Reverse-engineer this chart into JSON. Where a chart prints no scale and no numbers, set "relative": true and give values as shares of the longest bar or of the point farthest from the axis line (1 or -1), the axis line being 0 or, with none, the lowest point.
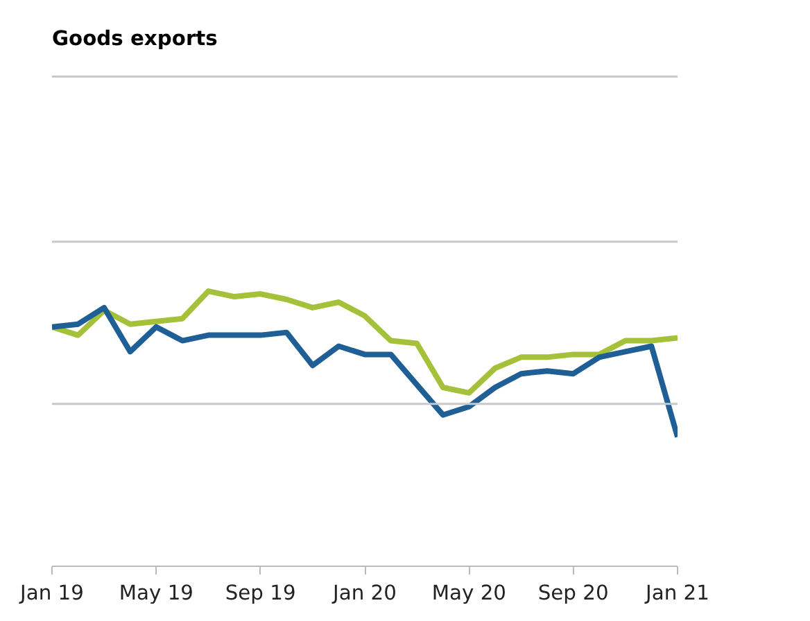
{
  "chart_data": {
    "type": "line",
    "title": "Goods exports",
    "relative": true,
    "categories": [
      "Jan 19",
      null,
      null,
      null,
      "May 19",
      null,
      null,
      null,
      "Sep 19",
      null,
      null,
      null,
      "Jan 20",
      null,
      null,
      null,
      "May 20",
      null,
      null,
      null,
      "Sep 20",
      null,
      null,
      null,
      "Jan 21"
    ],
    "series": [
      {
        "color": "#a5c13a",
        "values": [
          0.87,
          0.84,
          0.93,
          0.88,
          0.89,
          0.9,
          1.0,
          0.98,
          0.99,
          0.97,
          0.94,
          0.96,
          0.91,
          0.82,
          0.81,
          0.65,
          0.63,
          0.72,
          0.76,
          0.76,
          0.77,
          0.77,
          0.82,
          0.82,
          0.83
        ]
      },
      {
        "color": "#1f5f96",
        "values": [
          0.87,
          0.88,
          0.94,
          0.78,
          0.87,
          0.82,
          0.84,
          0.84,
          0.84,
          0.85,
          0.73,
          0.8,
          0.77,
          0.77,
          0.66,
          0.55,
          0.58,
          0.65,
          0.7,
          0.71,
          0.7,
          0.76,
          0.78,
          0.8,
          0.47
        ]
      }
    ],
    "ref_lines": [
      {
        "axis": "y",
        "value": 0.59,
        "color": "#c8c8c8"
      },
      {
        "axis": "y",
        "value": 1.18,
        "color": "#c8c8c8"
      },
      {
        "axis": "y",
        "value": 1.78,
        "color": "#c8c8c8"
      }
    ],
    "marker": "none",
    "line_style": "solid"
  }
}
